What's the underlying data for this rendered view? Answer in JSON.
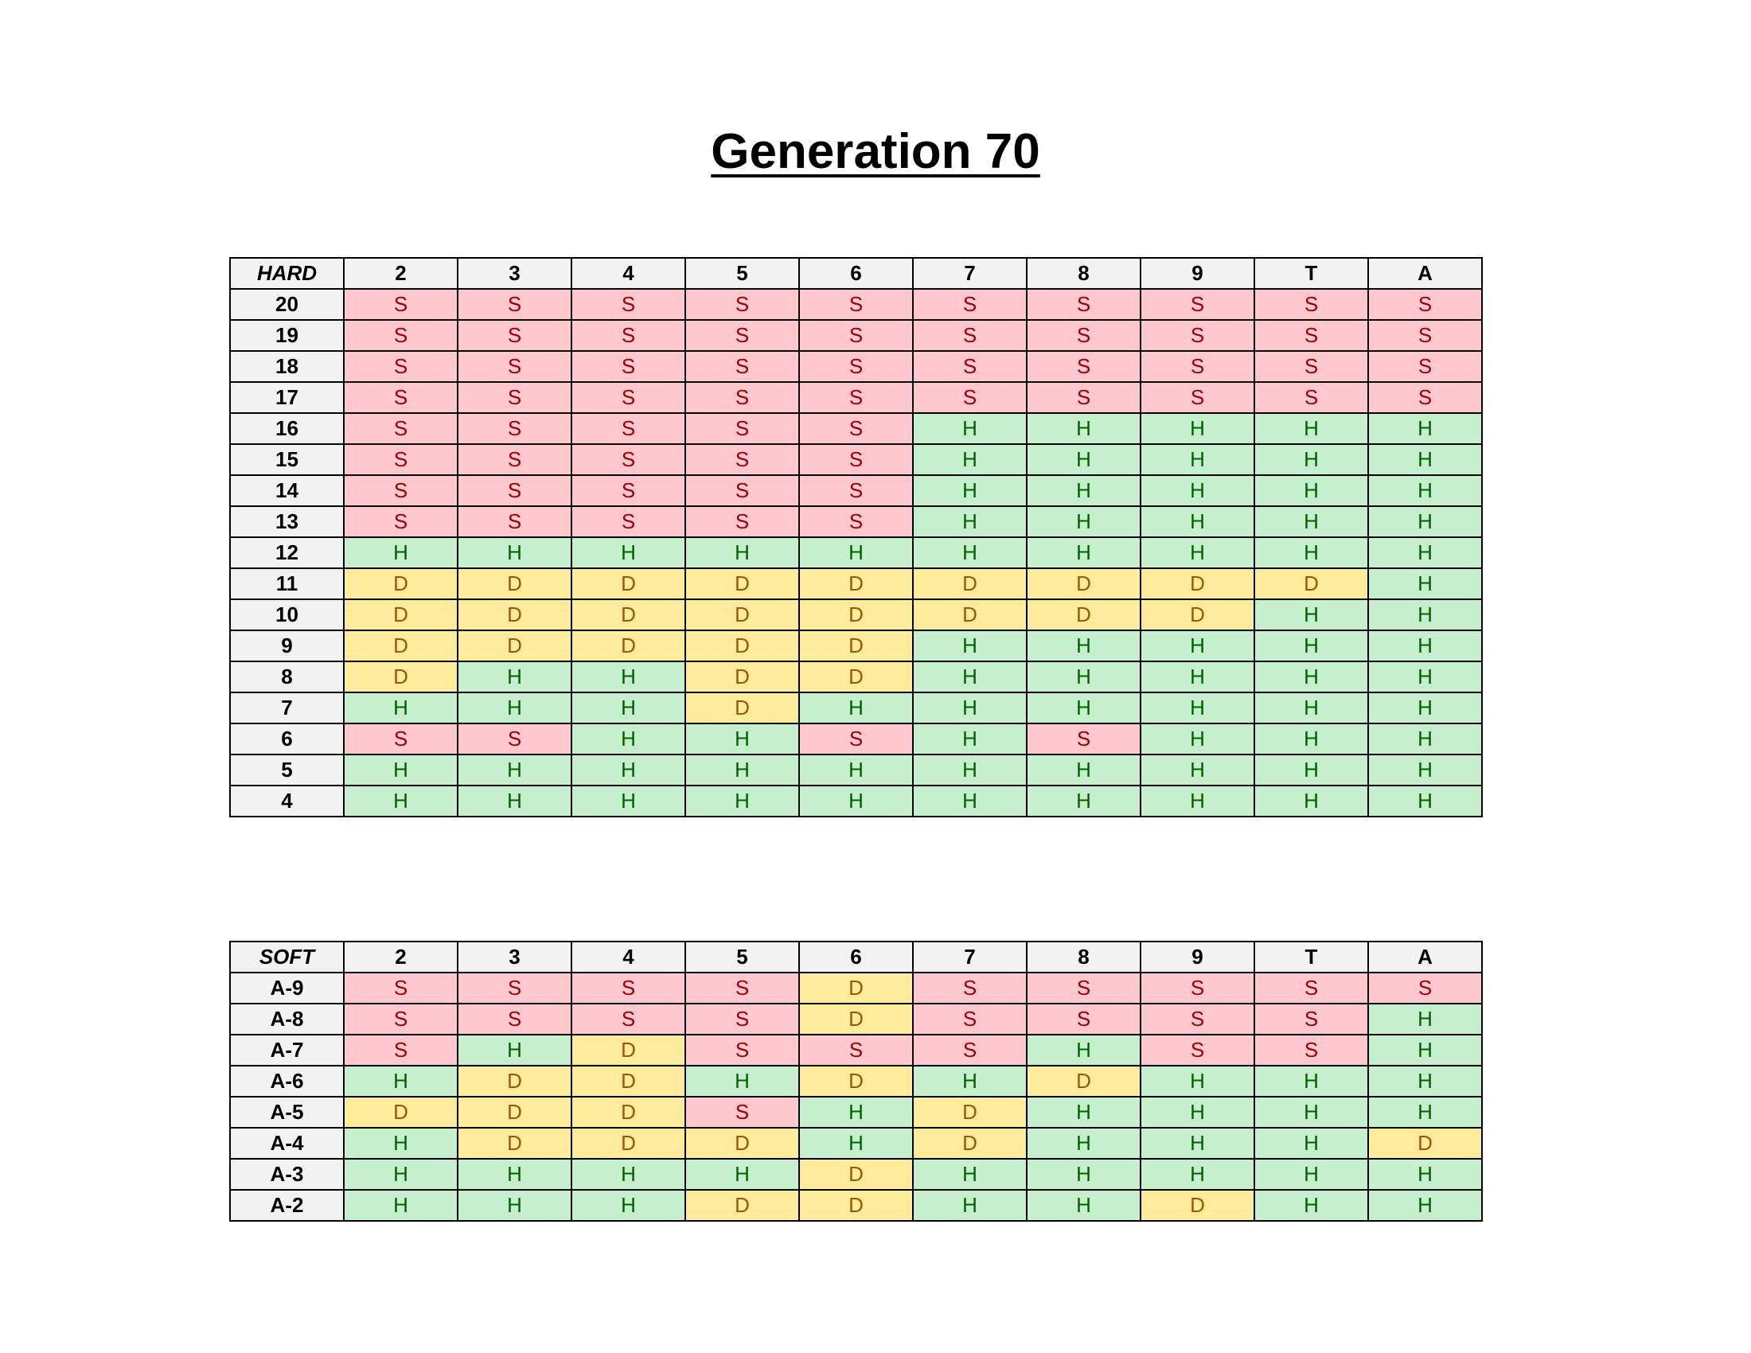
{
  "title": "Generation 70",
  "hard": {
    "corner": "HARD",
    "columns": [
      "2",
      "3",
      "4",
      "5",
      "6",
      "7",
      "8",
      "9",
      "T",
      "A"
    ],
    "rows": [
      {
        "label": "20",
        "cells": [
          "S",
          "S",
          "S",
          "S",
          "S",
          "S",
          "S",
          "S",
          "S",
          "S"
        ]
      },
      {
        "label": "19",
        "cells": [
          "S",
          "S",
          "S",
          "S",
          "S",
          "S",
          "S",
          "S",
          "S",
          "S"
        ]
      },
      {
        "label": "18",
        "cells": [
          "S",
          "S",
          "S",
          "S",
          "S",
          "S",
          "S",
          "S",
          "S",
          "S"
        ]
      },
      {
        "label": "17",
        "cells": [
          "S",
          "S",
          "S",
          "S",
          "S",
          "S",
          "S",
          "S",
          "S",
          "S"
        ]
      },
      {
        "label": "16",
        "cells": [
          "S",
          "S",
          "S",
          "S",
          "S",
          "H",
          "H",
          "H",
          "H",
          "H"
        ]
      },
      {
        "label": "15",
        "cells": [
          "S",
          "S",
          "S",
          "S",
          "S",
          "H",
          "H",
          "H",
          "H",
          "H"
        ]
      },
      {
        "label": "14",
        "cells": [
          "S",
          "S",
          "S",
          "S",
          "S",
          "H",
          "H",
          "H",
          "H",
          "H"
        ]
      },
      {
        "label": "13",
        "cells": [
          "S",
          "S",
          "S",
          "S",
          "S",
          "H",
          "H",
          "H",
          "H",
          "H"
        ]
      },
      {
        "label": "12",
        "cells": [
          "H",
          "H",
          "H",
          "H",
          "H",
          "H",
          "H",
          "H",
          "H",
          "H"
        ]
      },
      {
        "label": "11",
        "cells": [
          "D",
          "D",
          "D",
          "D",
          "D",
          "D",
          "D",
          "D",
          "D",
          "H"
        ]
      },
      {
        "label": "10",
        "cells": [
          "D",
          "D",
          "D",
          "D",
          "D",
          "D",
          "D",
          "D",
          "H",
          "H"
        ]
      },
      {
        "label": "9",
        "cells": [
          "D",
          "D",
          "D",
          "D",
          "D",
          "H",
          "H",
          "H",
          "H",
          "H"
        ]
      },
      {
        "label": "8",
        "cells": [
          "D",
          "H",
          "H",
          "D",
          "D",
          "H",
          "H",
          "H",
          "H",
          "H"
        ]
      },
      {
        "label": "7",
        "cells": [
          "H",
          "H",
          "H",
          "D",
          "H",
          "H",
          "H",
          "H",
          "H",
          "H"
        ]
      },
      {
        "label": "6",
        "cells": [
          "S",
          "S",
          "H",
          "H",
          "S",
          "H",
          "S",
          "H",
          "H",
          "H"
        ]
      },
      {
        "label": "5",
        "cells": [
          "H",
          "H",
          "H",
          "H",
          "H",
          "H",
          "H",
          "H",
          "H",
          "H"
        ]
      },
      {
        "label": "4",
        "cells": [
          "H",
          "H",
          "H",
          "H",
          "H",
          "H",
          "H",
          "H",
          "H",
          "H"
        ]
      }
    ]
  },
  "soft": {
    "corner": "SOFT",
    "columns": [
      "2",
      "3",
      "4",
      "5",
      "6",
      "7",
      "8",
      "9",
      "T",
      "A"
    ],
    "rows": [
      {
        "label": "A-9",
        "cells": [
          "S",
          "S",
          "S",
          "S",
          "D",
          "S",
          "S",
          "S",
          "S",
          "S"
        ]
      },
      {
        "label": "A-8",
        "cells": [
          "S",
          "S",
          "S",
          "S",
          "D",
          "S",
          "S",
          "S",
          "S",
          "H"
        ]
      },
      {
        "label": "A-7",
        "cells": [
          "S",
          "H",
          "D",
          "S",
          "S",
          "S",
          "H",
          "S",
          "S",
          "H"
        ]
      },
      {
        "label": "A-6",
        "cells": [
          "H",
          "D",
          "D",
          "H",
          "D",
          "H",
          "D",
          "H",
          "H",
          "H"
        ]
      },
      {
        "label": "A-5",
        "cells": [
          "D",
          "D",
          "D",
          "S",
          "H",
          "D",
          "H",
          "H",
          "H",
          "H"
        ]
      },
      {
        "label": "A-4",
        "cells": [
          "H",
          "D",
          "D",
          "D",
          "H",
          "D",
          "H",
          "H",
          "H",
          "D"
        ]
      },
      {
        "label": "A-3",
        "cells": [
          "H",
          "H",
          "H",
          "H",
          "D",
          "H",
          "H",
          "H",
          "H",
          "H"
        ]
      },
      {
        "label": "A-2",
        "cells": [
          "H",
          "H",
          "H",
          "D",
          "D",
          "H",
          "H",
          "D",
          "H",
          "H"
        ]
      }
    ]
  },
  "colors": {
    "S_fill": "#ffc7ce",
    "S_text": "#9c0006",
    "H_fill": "#c6efce",
    "H_text": "#006100",
    "D_fill": "#ffeb9c",
    "D_text": "#9c5700",
    "header_fill": "#f2f2f2"
  }
}
